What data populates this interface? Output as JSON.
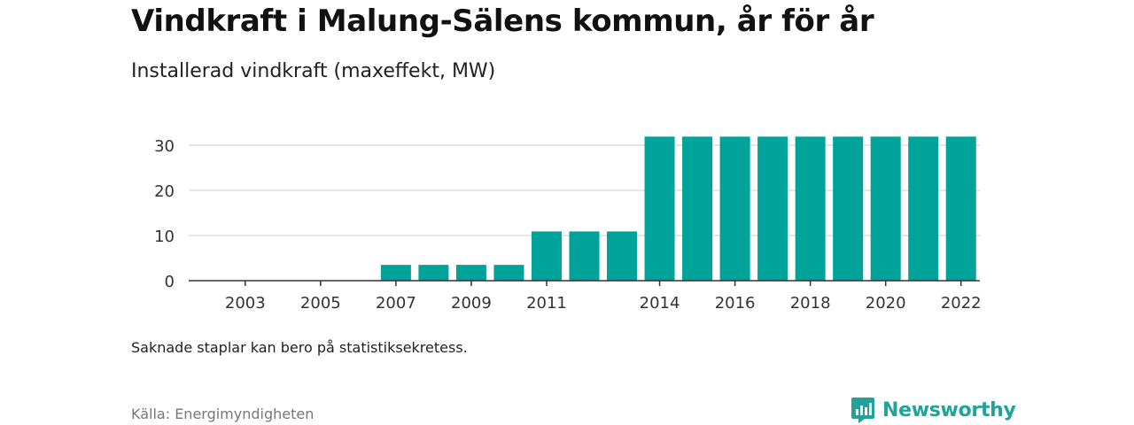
{
  "header": {
    "title": "Vindkraft i Malung-Sälens kommun, år för år",
    "subtitle": "Installerad vindkraft (maxeffekt, MW)"
  },
  "footer": {
    "note": "Saknade staplar kan bero på statistiksekretess.",
    "source": "Källa: Energimyndigheten",
    "brand": "Newsworthy"
  },
  "colors": {
    "bar": "#00a39a",
    "grid": "#dddddd",
    "axis": "#333333",
    "brand": "#20a39a"
  },
  "chart_data": {
    "type": "bar",
    "categories": [
      "2002",
      "2003",
      "2004",
      "2005",
      "2006",
      "2007",
      "2008",
      "2009",
      "2010",
      "2011",
      "2012",
      "2013",
      "2014",
      "2015",
      "2016",
      "2017",
      "2018",
      "2019",
      "2020",
      "2021",
      "2022"
    ],
    "tick_labels": [
      "2003",
      "2005",
      "2007",
      "2009",
      "2011",
      "2014",
      "2016",
      "2018",
      "2020",
      "2022"
    ],
    "series": [
      {
        "values": [
          null,
          null,
          null,
          null,
          null,
          3.5,
          3.5,
          3.5,
          3.5,
          10.9,
          10.9,
          10.9,
          31.9,
          31.9,
          31.9,
          31.9,
          31.9,
          31.9,
          31.9,
          31.9,
          31.9
        ]
      }
    ],
    "yticks": [
      0,
      10,
      20,
      30
    ],
    "ylim": [
      0,
      34
    ],
    "grid": true,
    "legend": "none"
  }
}
